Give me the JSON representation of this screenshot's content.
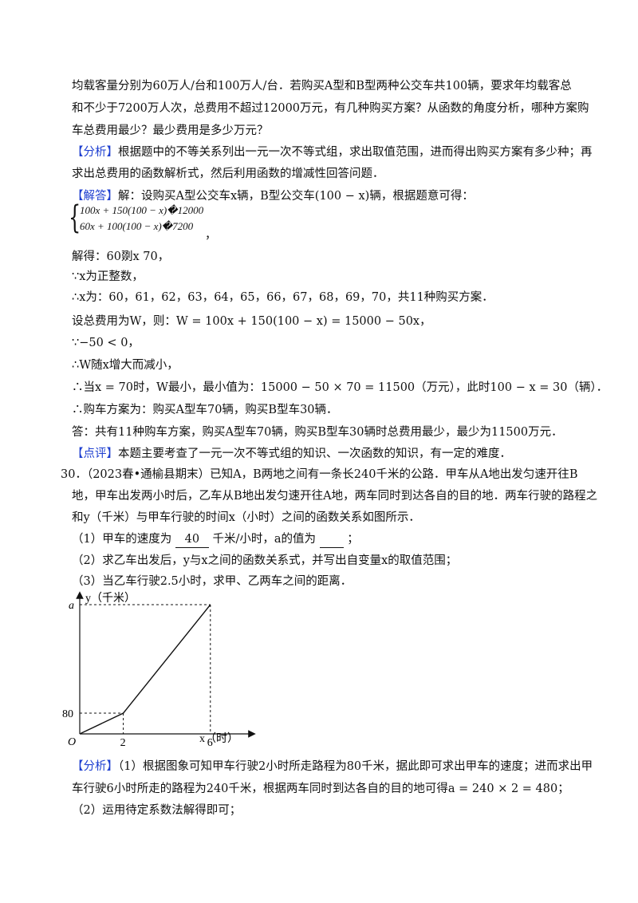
{
  "lines": {
    "l1": "均载客量分别为60万人/台和100万人/台．若购买A型和B型两种公交车共100辆，要求年均载客总",
    "l2": "和不少于7200万人次，总费用不超过12000万元，有几种购买方案？从函数的角度分析，哪种方案购",
    "l3": "车总费用最少？最少费用是多少万元？",
    "l4_tag": "【分析】",
    "l4": "根据题中的不等关系列出一元一次不等式组，求出取值范围，进而得出购买方案有多少种；再",
    "l5": "求出总费用的函数解析式，然后利用函数的增减性回答问题．",
    "l6_tag": "【解答】",
    "l6": "解：设购买A型公交车x辆，B型公交车(100 − x)辆，根据题意可得：",
    "sys1": "100x + 150(100 − x)�12000",
    "sys2": "60x + 100(100 − x)�7200",
    "sys_comma": "，",
    "l7": "解得：60剟x  70，",
    "l8": "∵x为正整数，",
    "l9": "∴x为：60，61，62，63，64，65，66，67，68，69，70，共11种购买方案．",
    "l10": "设总费用为W，则：W = 100x + 150(100 − x) = 15000 − 50x，",
    "l11": "∵−50 < 0，",
    "l12": "∴W随x增大而减小，",
    "l13": "∴当x = 70时，W最小，最小值为：15000 − 50 × 70 = 11500（万元），此时100 − x = 30（辆）．",
    "l14": "∴购车方案为：购买A型车70辆，购买B型车30辆．",
    "l15": "答：共有11种购车方案，购买A型车70辆，购买B型车30辆时总费用最少，最少为11500万元．",
    "l16_tag": "【点评】",
    "l16": "本题主要考查了一元一次不等式组的知识、一次函数的知识，有一定的难度．",
    "q30a": "30．（2023春•通榆县期末）已知A，B两地之间有一条长240千米的公路．甲车从A地出发匀速开往B",
    "q30b": "地，甲车出发两小时后，乙车从B地出发匀速开往A地，两车同时到达各自的目的地．两车行驶的路程之",
    "q30c": "和y（千米）与甲车行驶的时间x（小时）之间的函数关系如图所示．",
    "q1_pre": "（1）甲车的速度为",
    "q1_blank1": "40",
    "q1_mid": "千米/小时，a的值为",
    "q1_end": "；",
    "q2": "（2）求乙车出发后，y与x之间的函数关系式，并写出自变量x的取值范围；",
    "q3": "（3）当乙车行驶2.5小时，求甲、乙两车之间的距离．",
    "a_tag": "【分析】",
    "a1": "（1）根据图象可知甲车行驶2小时所走路程为80千米，据此即可求出甲车的速度；进而求出甲",
    "a2": "车行驶6小时所走的路程为240千米，根据两车同时到达各自的目的地可得a = 240 × 2 = 480；",
    "a3": "（2）运用待定系数法解得即可；"
  },
  "chart_data": {
    "type": "line",
    "x": [
      0,
      2,
      6
    ],
    "y_symbolic": [
      "0",
      "80",
      "a"
    ],
    "values": [
      0,
      80,
      480
    ],
    "xlabel": "x（时）",
    "ylabel": "y（千米）",
    "origin_label": "O",
    "x_ticks": [
      "2",
      "6"
    ],
    "y_ticks": [
      "80",
      "a"
    ]
  }
}
